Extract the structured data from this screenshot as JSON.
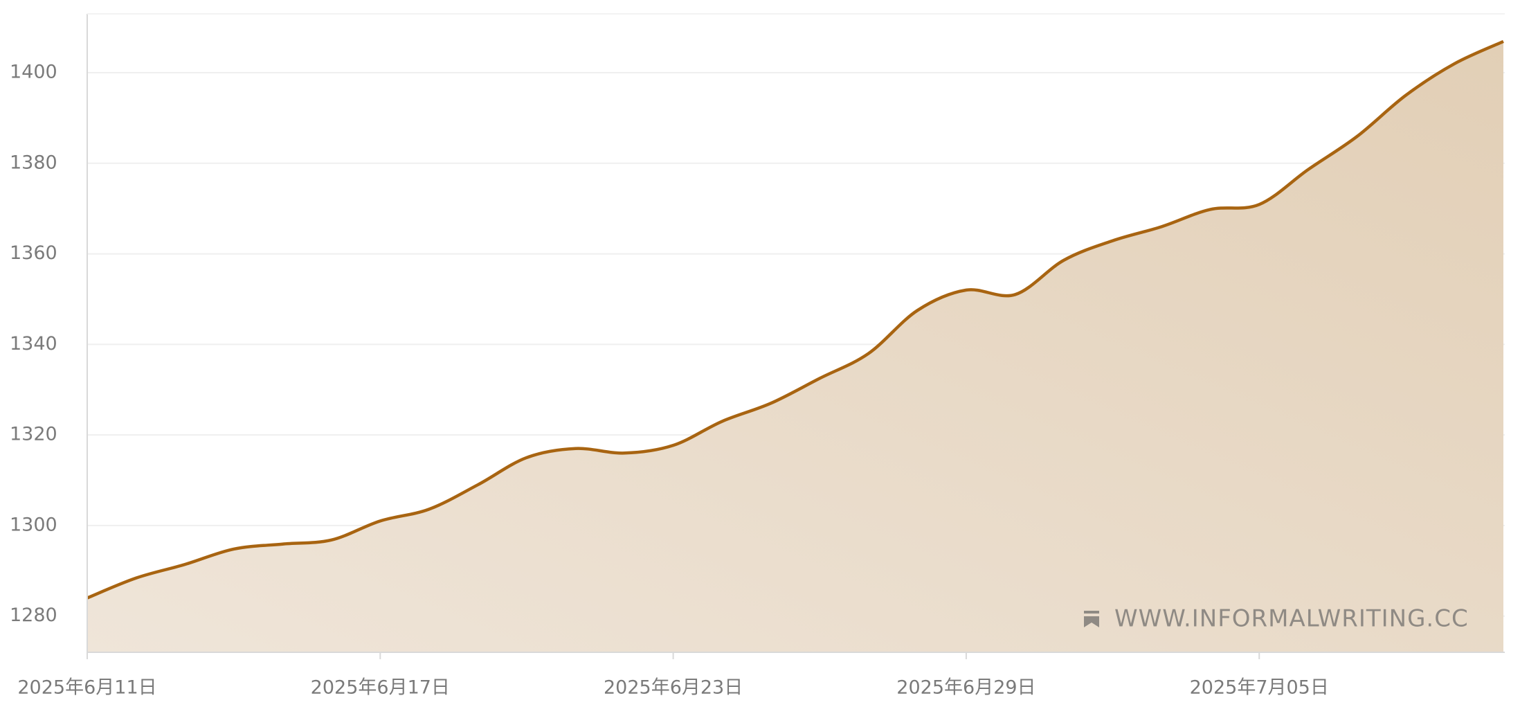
{
  "chart_data": {
    "type": "area",
    "x": [
      "2025-06-11",
      "2025-06-12",
      "2025-06-13",
      "2025-06-14",
      "2025-06-15",
      "2025-06-16",
      "2025-06-17",
      "2025-06-18",
      "2025-06-19",
      "2025-06-20",
      "2025-06-21",
      "2025-06-22",
      "2025-06-23",
      "2025-06-24",
      "2025-06-25",
      "2025-06-26",
      "2025-06-27",
      "2025-06-28",
      "2025-06-29",
      "2025-06-30",
      "2025-07-01",
      "2025-07-02",
      "2025-07-03",
      "2025-07-04",
      "2025-07-05",
      "2025-07-06",
      "2025-07-07",
      "2025-07-08",
      "2025-07-09",
      "2025-07-10"
    ],
    "values": [
      1284,
      1288.4,
      1291.4,
      1294.8,
      1295.9,
      1296.8,
      1301,
      1303.6,
      1309,
      1315,
      1317,
      1316,
      1317.7,
      1323,
      1327,
      1332.5,
      1338,
      1347.5,
      1352,
      1351,
      1358.6,
      1362.9,
      1366,
      1369.8,
      1370.9,
      1378.6,
      1385.9,
      1395,
      1402,
      1406.9
    ],
    "color": "#a86411",
    "xticks": [
      {
        "value": "2025-06-11",
        "label": "2025年6月11日"
      },
      {
        "value": "2025-06-17",
        "label": "2025年6月17日"
      },
      {
        "value": "2025-06-23",
        "label": "2025年6月23日"
      },
      {
        "value": "2025-06-29",
        "label": "2025年6月29日"
      },
      {
        "value": "2025-07-05",
        "label": "2025年7月05日"
      }
    ],
    "ylim": [
      1272,
      1413
    ],
    "yticks": [
      1280,
      1300,
      1320,
      1340,
      1360,
      1380,
      1400
    ],
    "grid": true,
    "watermark": "WWW.INFORMALWRITING.CC"
  }
}
